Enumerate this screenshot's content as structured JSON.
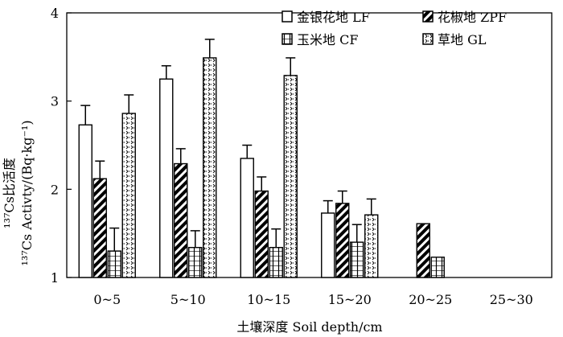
{
  "chart_data": {
    "type": "bar",
    "xlabel": "土壤深度 Soil depth/cm",
    "ylabel_line1": "¹³⁷Cs比活度",
    "ylabel_line2": "¹³⁷Cs Activty/(Bq·kg⁻¹)",
    "ylim": [
      1,
      4
    ],
    "yticks": [
      1,
      2,
      3,
      4
    ],
    "categories": [
      "0~5",
      "5~10",
      "10~15",
      "15~20",
      "20~25",
      "25~30"
    ],
    "legend_position": "top-right",
    "series": [
      {
        "name": "金银花地 LF",
        "pattern": "white",
        "values": [
          2.73,
          3.25,
          2.35,
          1.73,
          null,
          null
        ],
        "errors": [
          0.22,
          0.15,
          0.15,
          0.14,
          null,
          null
        ]
      },
      {
        "name": "花椒地 ZPF",
        "pattern": "diagonal",
        "values": [
          2.12,
          2.29,
          1.98,
          1.84,
          1.61,
          null
        ],
        "errors": [
          0.2,
          0.17,
          0.16,
          0.14,
          null,
          null
        ]
      },
      {
        "name": "玉米地 CF",
        "pattern": "grid",
        "values": [
          1.3,
          1.34,
          1.34,
          1.4,
          1.23,
          null
        ],
        "errors": [
          0.26,
          0.19,
          0.21,
          0.2,
          null,
          null
        ]
      },
      {
        "name": "草地 GL",
        "pattern": "dotted",
        "values": [
          2.86,
          3.49,
          3.29,
          1.71,
          null,
          null
        ],
        "errors": [
          0.21,
          0.21,
          0.2,
          0.18,
          null,
          null
        ]
      }
    ]
  }
}
